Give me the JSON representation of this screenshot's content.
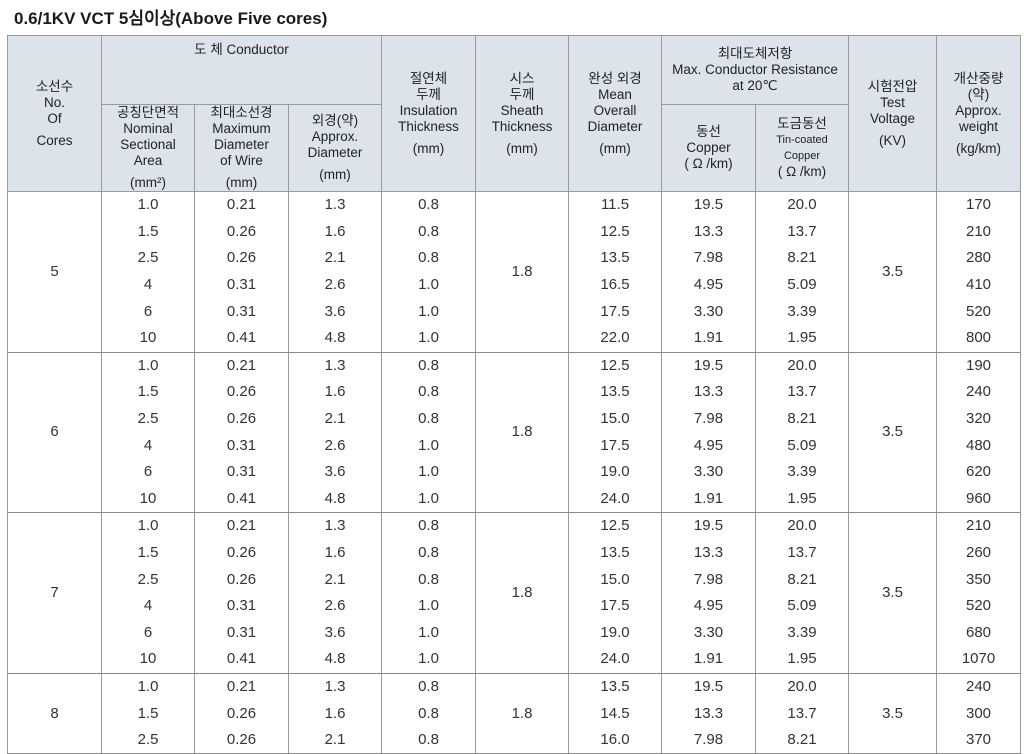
{
  "title": "0.6/1KV VCT 5심이상(Above Five cores)",
  "headers": {
    "cores": [
      "소선수",
      "No.",
      "Of",
      "Cores"
    ],
    "conductor": "도 체  Conductor",
    "area": [
      "공칭단면적",
      "Nominal",
      "Sectional",
      "Area",
      "(mm²)"
    ],
    "max_wire": [
      "최대소선경",
      "Maximum",
      "Diameter",
      "of Wire",
      "(mm)"
    ],
    "approx_dia": [
      "외경(약)",
      "Approx.",
      "Diameter",
      "(mm)"
    ],
    "insulation": [
      "절연체",
      "두께",
      "Insulation",
      "Thickness",
      "(mm)"
    ],
    "sheath": [
      "시스",
      "두께",
      "Sheath",
      "Thickness",
      "(mm)"
    ],
    "overall": [
      "완성 외경",
      "Mean",
      "Overall",
      "Diameter",
      "(mm)"
    ],
    "resistance": [
      "최대도체저항",
      "Max. Conductor Resistance",
      "at 20℃"
    ],
    "copper": [
      "동선",
      "Copper",
      "( Ω /km)"
    ],
    "tin": [
      "도금동선",
      "Tin-coated Copper",
      "( Ω /km)"
    ],
    "voltage": [
      "시험전압",
      "Test",
      "Voltage",
      "(KV)"
    ],
    "weight": [
      "개산중량",
      "(약)",
      "Approx.",
      "weight",
      "(kg/km)"
    ]
  },
  "groups": [
    {
      "cores": "5",
      "sheath": "1.8",
      "voltage": "3.5",
      "rows": [
        {
          "area": "1.0",
          "wire": "0.21",
          "dia": "1.3",
          "ins": "0.8",
          "overall": "11.5",
          "cu": "19.5",
          "tin": "20.0",
          "weight": "170"
        },
        {
          "area": "1.5",
          "wire": "0.26",
          "dia": "1.6",
          "ins": "0.8",
          "overall": "12.5",
          "cu": "13.3",
          "tin": "13.7",
          "weight": "210"
        },
        {
          "area": "2.5",
          "wire": "0.26",
          "dia": "2.1",
          "ins": "0.8",
          "overall": "13.5",
          "cu": "7.98",
          "tin": "8.21",
          "weight": "280"
        },
        {
          "area": "4",
          "wire": "0.31",
          "dia": "2.6",
          "ins": "1.0",
          "overall": "16.5",
          "cu": "4.95",
          "tin": "5.09",
          "weight": "410"
        },
        {
          "area": "6",
          "wire": "0.31",
          "dia": "3.6",
          "ins": "1.0",
          "overall": "17.5",
          "cu": "3.30",
          "tin": "3.39",
          "weight": "520"
        },
        {
          "area": "10",
          "wire": "0.41",
          "dia": "4.8",
          "ins": "1.0",
          "overall": "22.0",
          "cu": "1.91",
          "tin": "1.95",
          "weight": "800"
        }
      ]
    },
    {
      "cores": "6",
      "sheath": "1.8",
      "voltage": "3.5",
      "rows": [
        {
          "area": "1.0",
          "wire": "0.21",
          "dia": "1.3",
          "ins": "0.8",
          "overall": "12.5",
          "cu": "19.5",
          "tin": "20.0",
          "weight": "190"
        },
        {
          "area": "1.5",
          "wire": "0.26",
          "dia": "1.6",
          "ins": "0.8",
          "overall": "13.5",
          "cu": "13.3",
          "tin": "13.7",
          "weight": "240"
        },
        {
          "area": "2.5",
          "wire": "0.26",
          "dia": "2.1",
          "ins": "0.8",
          "overall": "15.0",
          "cu": "7.98",
          "tin": "8.21",
          "weight": "320"
        },
        {
          "area": "4",
          "wire": "0.31",
          "dia": "2.6",
          "ins": "1.0",
          "overall": "17.5",
          "cu": "4.95",
          "tin": "5.09",
          "weight": "480"
        },
        {
          "area": "6",
          "wire": "0.31",
          "dia": "3.6",
          "ins": "1.0",
          "overall": "19.0",
          "cu": "3.30",
          "tin": "3.39",
          "weight": "620"
        },
        {
          "area": "10",
          "wire": "0.41",
          "dia": "4.8",
          "ins": "1.0",
          "overall": "24.0",
          "cu": "1.91",
          "tin": "1.95",
          "weight": "960"
        }
      ]
    },
    {
      "cores": "7",
      "sheath": "1.8",
      "voltage": "3.5",
      "rows": [
        {
          "area": "1.0",
          "wire": "0.21",
          "dia": "1.3",
          "ins": "0.8",
          "overall": "12.5",
          "cu": "19.5",
          "tin": "20.0",
          "weight": "210"
        },
        {
          "area": "1.5",
          "wire": "0.26",
          "dia": "1.6",
          "ins": "0.8",
          "overall": "13.5",
          "cu": "13.3",
          "tin": "13.7",
          "weight": "260"
        },
        {
          "area": "2.5",
          "wire": "0.26",
          "dia": "2.1",
          "ins": "0.8",
          "overall": "15.0",
          "cu": "7.98",
          "tin": "8.21",
          "weight": "350"
        },
        {
          "area": "4",
          "wire": "0.31",
          "dia": "2.6",
          "ins": "1.0",
          "overall": "17.5",
          "cu": "4.95",
          "tin": "5.09",
          "weight": "520"
        },
        {
          "area": "6",
          "wire": "0.31",
          "dia": "3.6",
          "ins": "1.0",
          "overall": "19.0",
          "cu": "3.30",
          "tin": "3.39",
          "weight": "680"
        },
        {
          "area": "10",
          "wire": "0.41",
          "dia": "4.8",
          "ins": "1.0",
          "overall": "24.0",
          "cu": "1.91",
          "tin": "1.95",
          "weight": "1070"
        }
      ]
    },
    {
      "cores": "8",
      "sheath": "1.8",
      "voltage": "3.5",
      "rows": [
        {
          "area": "1.0",
          "wire": "0.21",
          "dia": "1.3",
          "ins": "0.8",
          "overall": "13.5",
          "cu": "19.5",
          "tin": "20.0",
          "weight": "240"
        },
        {
          "area": "1.5",
          "wire": "0.26",
          "dia": "1.6",
          "ins": "0.8",
          "overall": "14.5",
          "cu": "13.3",
          "tin": "13.7",
          "weight": "300"
        },
        {
          "area": "2.5",
          "wire": "0.26",
          "dia": "2.1",
          "ins": "0.8",
          "overall": "16.0",
          "cu": "7.98",
          "tin": "8.21",
          "weight": "370"
        }
      ]
    }
  ]
}
